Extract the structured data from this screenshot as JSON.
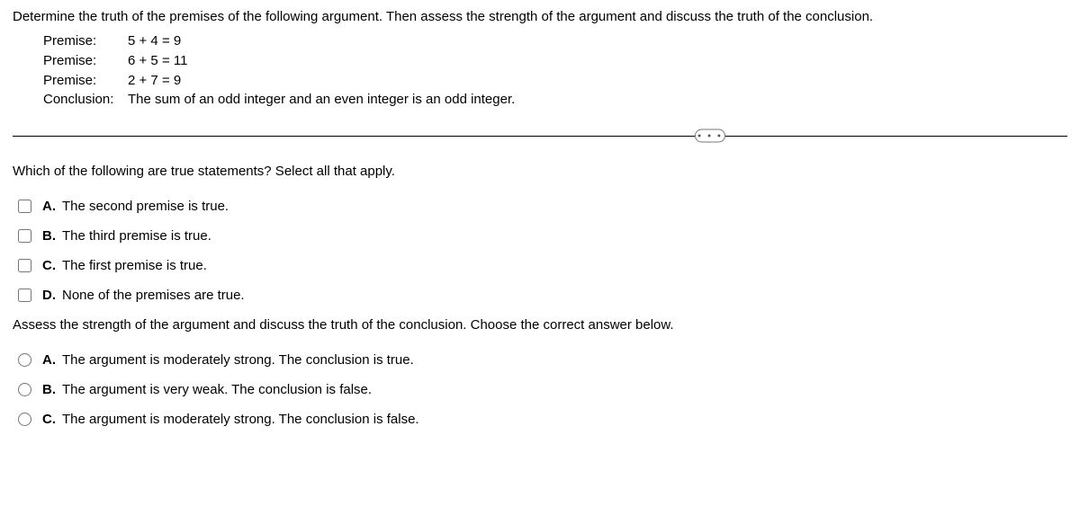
{
  "prompt": "Determine the truth of the premises of the following argument. Then assess the strength of the argument and discuss the truth of the conclusion.",
  "premises": {
    "label": "Premise:",
    "lines": [
      "5 + 4 = 9",
      "6 + 5 = 11",
      "2 + 7 = 9"
    ],
    "conclusion_label": "Conclusion:",
    "conclusion_text": "The sum of an odd integer and an even integer is an odd integer."
  },
  "more_glyph": "• • •",
  "q1": {
    "text": "Which of the following are true statements? Select all that apply.",
    "options": [
      {
        "letter": "A.",
        "text": "The second premise is true."
      },
      {
        "letter": "B.",
        "text": "The third premise is true."
      },
      {
        "letter": "C.",
        "text": "The first premise is true."
      },
      {
        "letter": "D.",
        "text": "None of the premises are true."
      }
    ]
  },
  "q2": {
    "text": "Assess the strength of the argument and discuss the truth of the conclusion. Choose the correct answer below.",
    "options": [
      {
        "letter": "A.",
        "text": "The argument is moderately strong. The conclusion is true."
      },
      {
        "letter": "B.",
        "text": "The argument is very weak. The conclusion is false."
      },
      {
        "letter": "C.",
        "text": "The argument is moderately strong. The conclusion is false."
      }
    ]
  }
}
